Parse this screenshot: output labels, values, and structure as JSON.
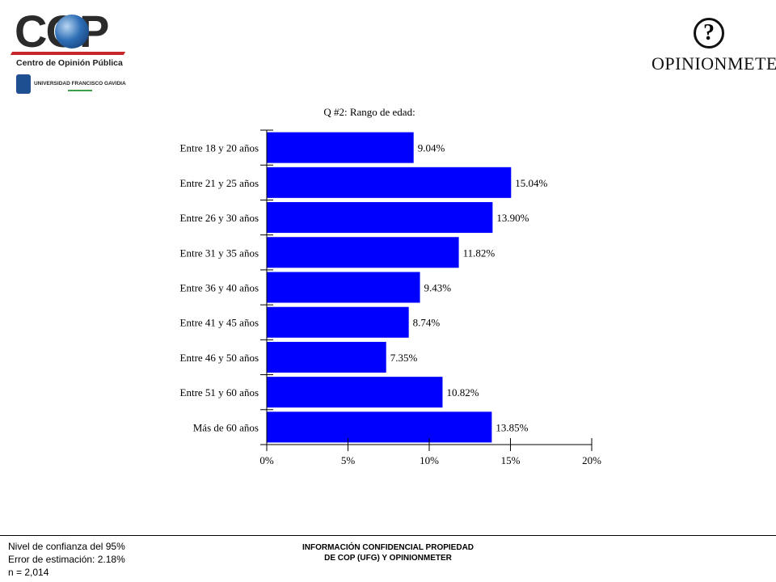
{
  "logos": {
    "cop": {
      "wordmark": "COP",
      "tagline": "Centro de Opinión Pública",
      "university": "UNIVERSIDAD FRANCISCO GAVIDIA"
    },
    "opinionmeter": {
      "wordmark": "OPINIONMETER",
      "symbol": "?"
    }
  },
  "chart_data": {
    "type": "bar",
    "orientation": "horizontal",
    "title": "Q #2: Rango de edad:",
    "categories": [
      "Entre 18 y 20 años",
      "Entre 21 y 25 años",
      "Entre 26 y 30 años",
      "Entre 31 y 35 años",
      "Entre 36 y 40 años",
      "Entre 41 y 45 años",
      "Entre 46 y 50 años",
      "Entre 51 y 60 años",
      "Más de 60 años"
    ],
    "values": [
      9.04,
      15.04,
      13.9,
      11.82,
      9.43,
      8.74,
      7.35,
      10.82,
      13.85
    ],
    "value_labels": [
      "9.04%",
      "15.04%",
      "13.90%",
      "11.82%",
      "9.43%",
      "8.74%",
      "7.35%",
      "10.82%",
      "13.85%"
    ],
    "xlim": [
      0,
      20
    ],
    "xticks": [
      0,
      5,
      10,
      15,
      20
    ],
    "xtick_labels": [
      "0%",
      "5%",
      "10%",
      "15%",
      "20%"
    ],
    "bar_color": "#0000ff",
    "xlabel": "",
    "ylabel": "",
    "grid": false
  },
  "footer": {
    "left_lines": [
      "Nivel de confianza del 95%",
      "Error de estimación: 2.18%",
      "n = 2,014"
    ],
    "center_lines": [
      "INFORMACIÓN CONFIDENCIAL PROPIEDAD",
      "DE COP (UFG) Y OPINIONMETER"
    ]
  }
}
